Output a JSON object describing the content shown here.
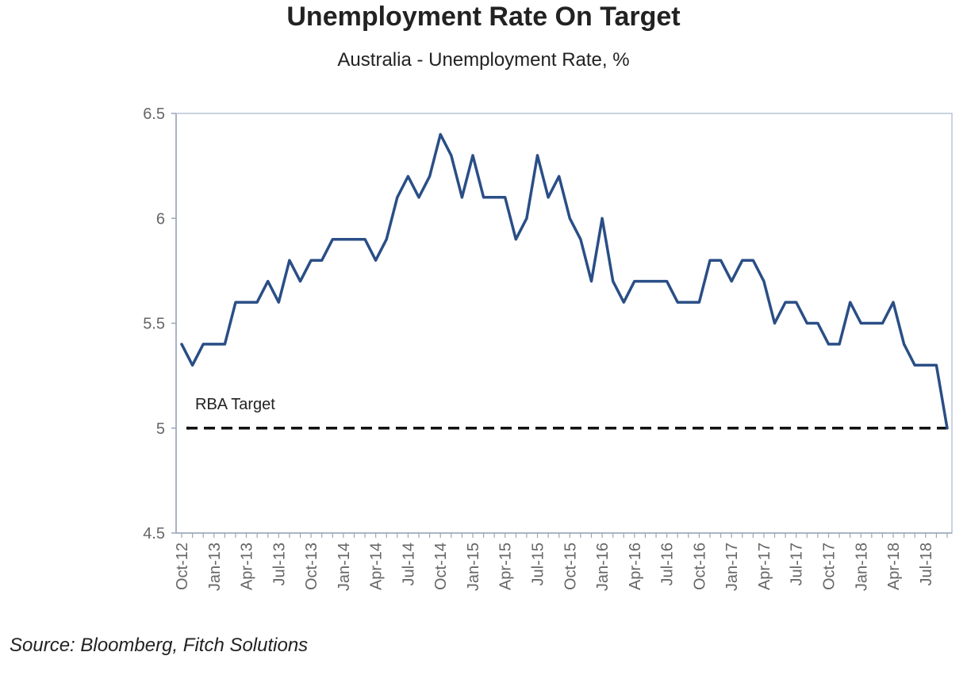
{
  "chart_data": {
    "type": "line",
    "title": "Unemployment Rate On Target",
    "subtitle": "Australia - Unemployment Rate, %",
    "source": "Source: Bloomberg, Fitch Solutions",
    "ylim": [
      4.5,
      6.5
    ],
    "yticks": [
      "4.5",
      "5",
      "5.5",
      "6",
      "6.5"
    ],
    "xtick_labels": [
      "Oct-12",
      "Jan-13",
      "Apr-13",
      "Jul-13",
      "Oct-13",
      "Jan-14",
      "Apr-14",
      "Jul-14",
      "Oct-14",
      "Jan-15",
      "Apr-15",
      "Jul-15",
      "Oct-15",
      "Jan-16",
      "Apr-16",
      "Jul-16",
      "Oct-16",
      "Jan-17",
      "Apr-17",
      "Jul-17",
      "Oct-17",
      "Jan-18",
      "Apr-18",
      "Jul-18"
    ],
    "x_start": "Oct-12",
    "x_frequency": "monthly",
    "grid": false,
    "series": [
      {
        "color": "#2a4e86",
        "values": [
          5.4,
          5.3,
          5.4,
          5.4,
          5.4,
          5.6,
          5.6,
          5.6,
          5.7,
          5.6,
          5.8,
          5.7,
          5.8,
          5.8,
          5.9,
          5.9,
          5.9,
          5.9,
          5.8,
          5.9,
          6.1,
          6.2,
          6.1,
          6.2,
          6.4,
          6.3,
          6.1,
          6.3,
          6.1,
          6.1,
          6.1,
          5.9,
          6.0,
          6.3,
          6.1,
          6.2,
          6.0,
          5.9,
          5.7,
          6.0,
          5.7,
          5.6,
          5.7,
          5.7,
          5.7,
          5.7,
          5.6,
          5.6,
          5.6,
          5.8,
          5.8,
          5.7,
          5.8,
          5.8,
          5.7,
          5.5,
          5.6,
          5.6,
          5.5,
          5.5,
          5.4,
          5.4,
          5.6,
          5.5,
          5.5,
          5.5,
          5.6,
          5.4,
          5.3,
          5.3,
          5.3,
          5.0
        ]
      }
    ],
    "target": {
      "label": "RBA Target",
      "value": 5.0,
      "color": "#111111"
    }
  }
}
